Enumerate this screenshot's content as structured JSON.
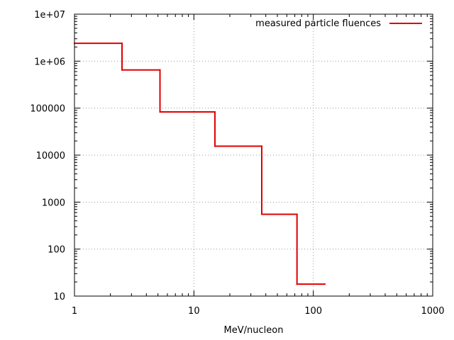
{
  "chart_data": {
    "type": "line",
    "style": "step",
    "title": "",
    "xlabel": "MeV/nucleon",
    "ylabel": "",
    "xscale": "log",
    "yscale": "log",
    "xlim": [
      1,
      1000
    ],
    "ylim": [
      10,
      10000000
    ],
    "grid": true,
    "legend_position": "top-right",
    "x_ticks": [
      {
        "value": 1,
        "label": "1"
      },
      {
        "value": 10,
        "label": "10"
      },
      {
        "value": 100,
        "label": "100"
      },
      {
        "value": 1000,
        "label": "1000"
      }
    ],
    "y_ticks": [
      {
        "value": 10,
        "label": "10"
      },
      {
        "value": 100,
        "label": "100"
      },
      {
        "value": 1000,
        "label": "1000"
      },
      {
        "value": 10000,
        "label": "10000"
      },
      {
        "value": 100000,
        "label": "100000"
      },
      {
        "value": 1000000,
        "label": "1e+06"
      },
      {
        "value": 10000000,
        "label": "1e+07"
      }
    ],
    "series": [
      {
        "name": "measured particle fluences",
        "color": "#e00000",
        "steps": [
          {
            "x_start": 1,
            "x_end": 2.5,
            "y": 2400000
          },
          {
            "x_start": 2.5,
            "x_end": 5.2,
            "y": 650000
          },
          {
            "x_start": 5.2,
            "x_end": 15,
            "y": 83000
          },
          {
            "x_start": 15,
            "x_end": 37,
            "y": 15500
          },
          {
            "x_start": 37,
            "x_end": 73,
            "y": 550
          },
          {
            "x_start": 73,
            "x_end": 125,
            "y": 18
          }
        ]
      }
    ]
  }
}
